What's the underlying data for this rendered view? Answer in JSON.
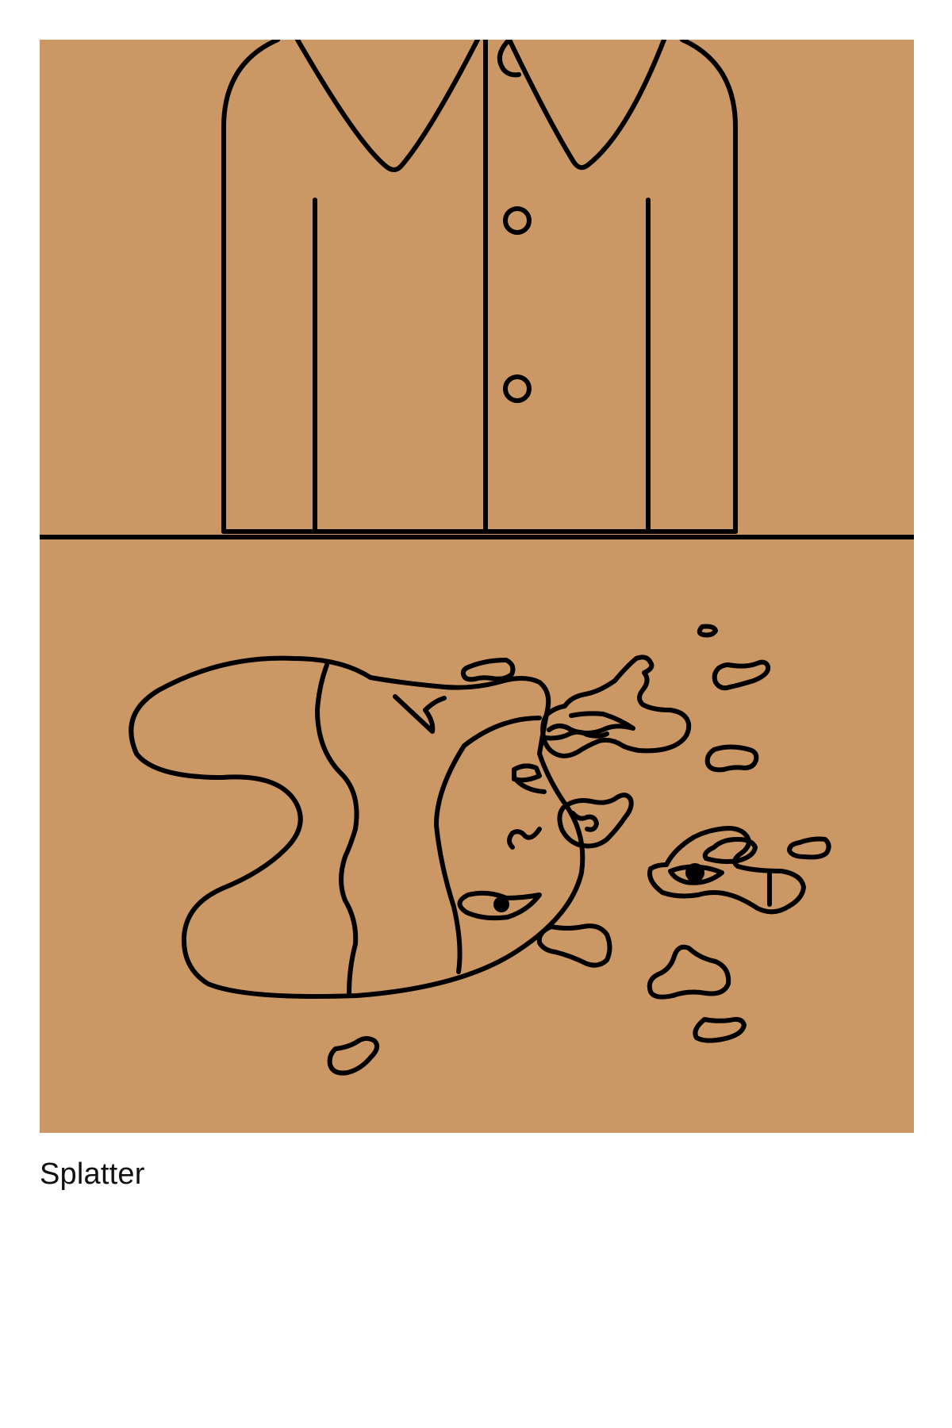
{
  "artwork": {
    "caption": "Splatter",
    "background_color": "#CB9765",
    "line_color": "#000000",
    "subject": "shirt-torso-and-splattered-face-illustration"
  }
}
